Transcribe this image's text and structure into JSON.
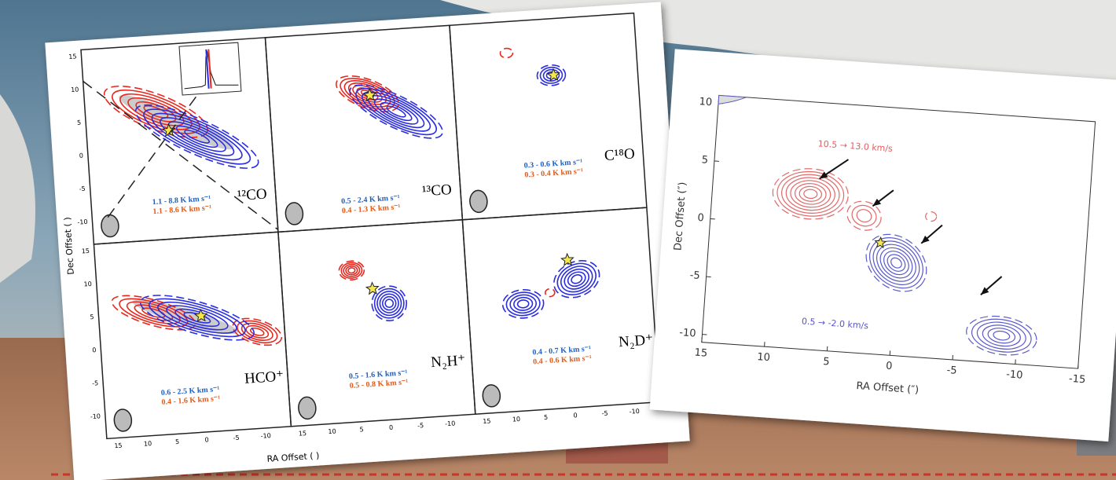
{
  "left_figure": {
    "y_axis_label": "Dec Offset ( )",
    "x_axis_label": "RA Offset ( )",
    "y_ticks": [
      "15",
      "10",
      "5",
      "0",
      "-5",
      "-10"
    ],
    "x_ticks": [
      "15",
      "10",
      "5",
      "0",
      "-5",
      "-10"
    ],
    "panels": [
      {
        "molecule": "¹²CO",
        "blue_range": "1.1 - 8.8 K km s⁻¹",
        "red_range": "1.1 - 8.6 K km s⁻¹"
      },
      {
        "molecule": "¹³CO",
        "blue_range": "0.5 - 2.4 K km s⁻¹",
        "red_range": "0.4 - 1.3 K km s⁻¹"
      },
      {
        "molecule": "C¹⁸O",
        "blue_range": "0.3 - 0.6 K km s⁻¹",
        "red_range": "0.3 - 0.4 K km s⁻¹"
      },
      {
        "molecule": "HCO⁺",
        "blue_range": "0.6 - 2.5 K km s⁻¹",
        "red_range": "0.4 - 1.6 K km s⁻¹"
      },
      {
        "molecule": "N₂H⁺",
        "blue_range": "0.5 - 1.6 K km s⁻¹",
        "red_range": "0.5 - 0.8 K km s⁻¹"
      },
      {
        "molecule": "N₂D⁺",
        "blue_range": "0.4 - 0.7 K km s⁻¹",
        "red_range": "0.4 - 0.6 K km s⁻¹"
      }
    ]
  },
  "right_figure": {
    "y_axis_label": "Dec Offset (″)",
    "x_axis_label": "RA Offset (″)",
    "y_ticks": [
      "10",
      "5",
      "0",
      "-5",
      "-10"
    ],
    "x_ticks": [
      "15",
      "10",
      "5",
      "0",
      "-5",
      "-10",
      "-15"
    ],
    "red_annotation": "10.5 → 13.0 km/s",
    "blue_annotation": "0.5 → -2.0 km/s"
  }
}
